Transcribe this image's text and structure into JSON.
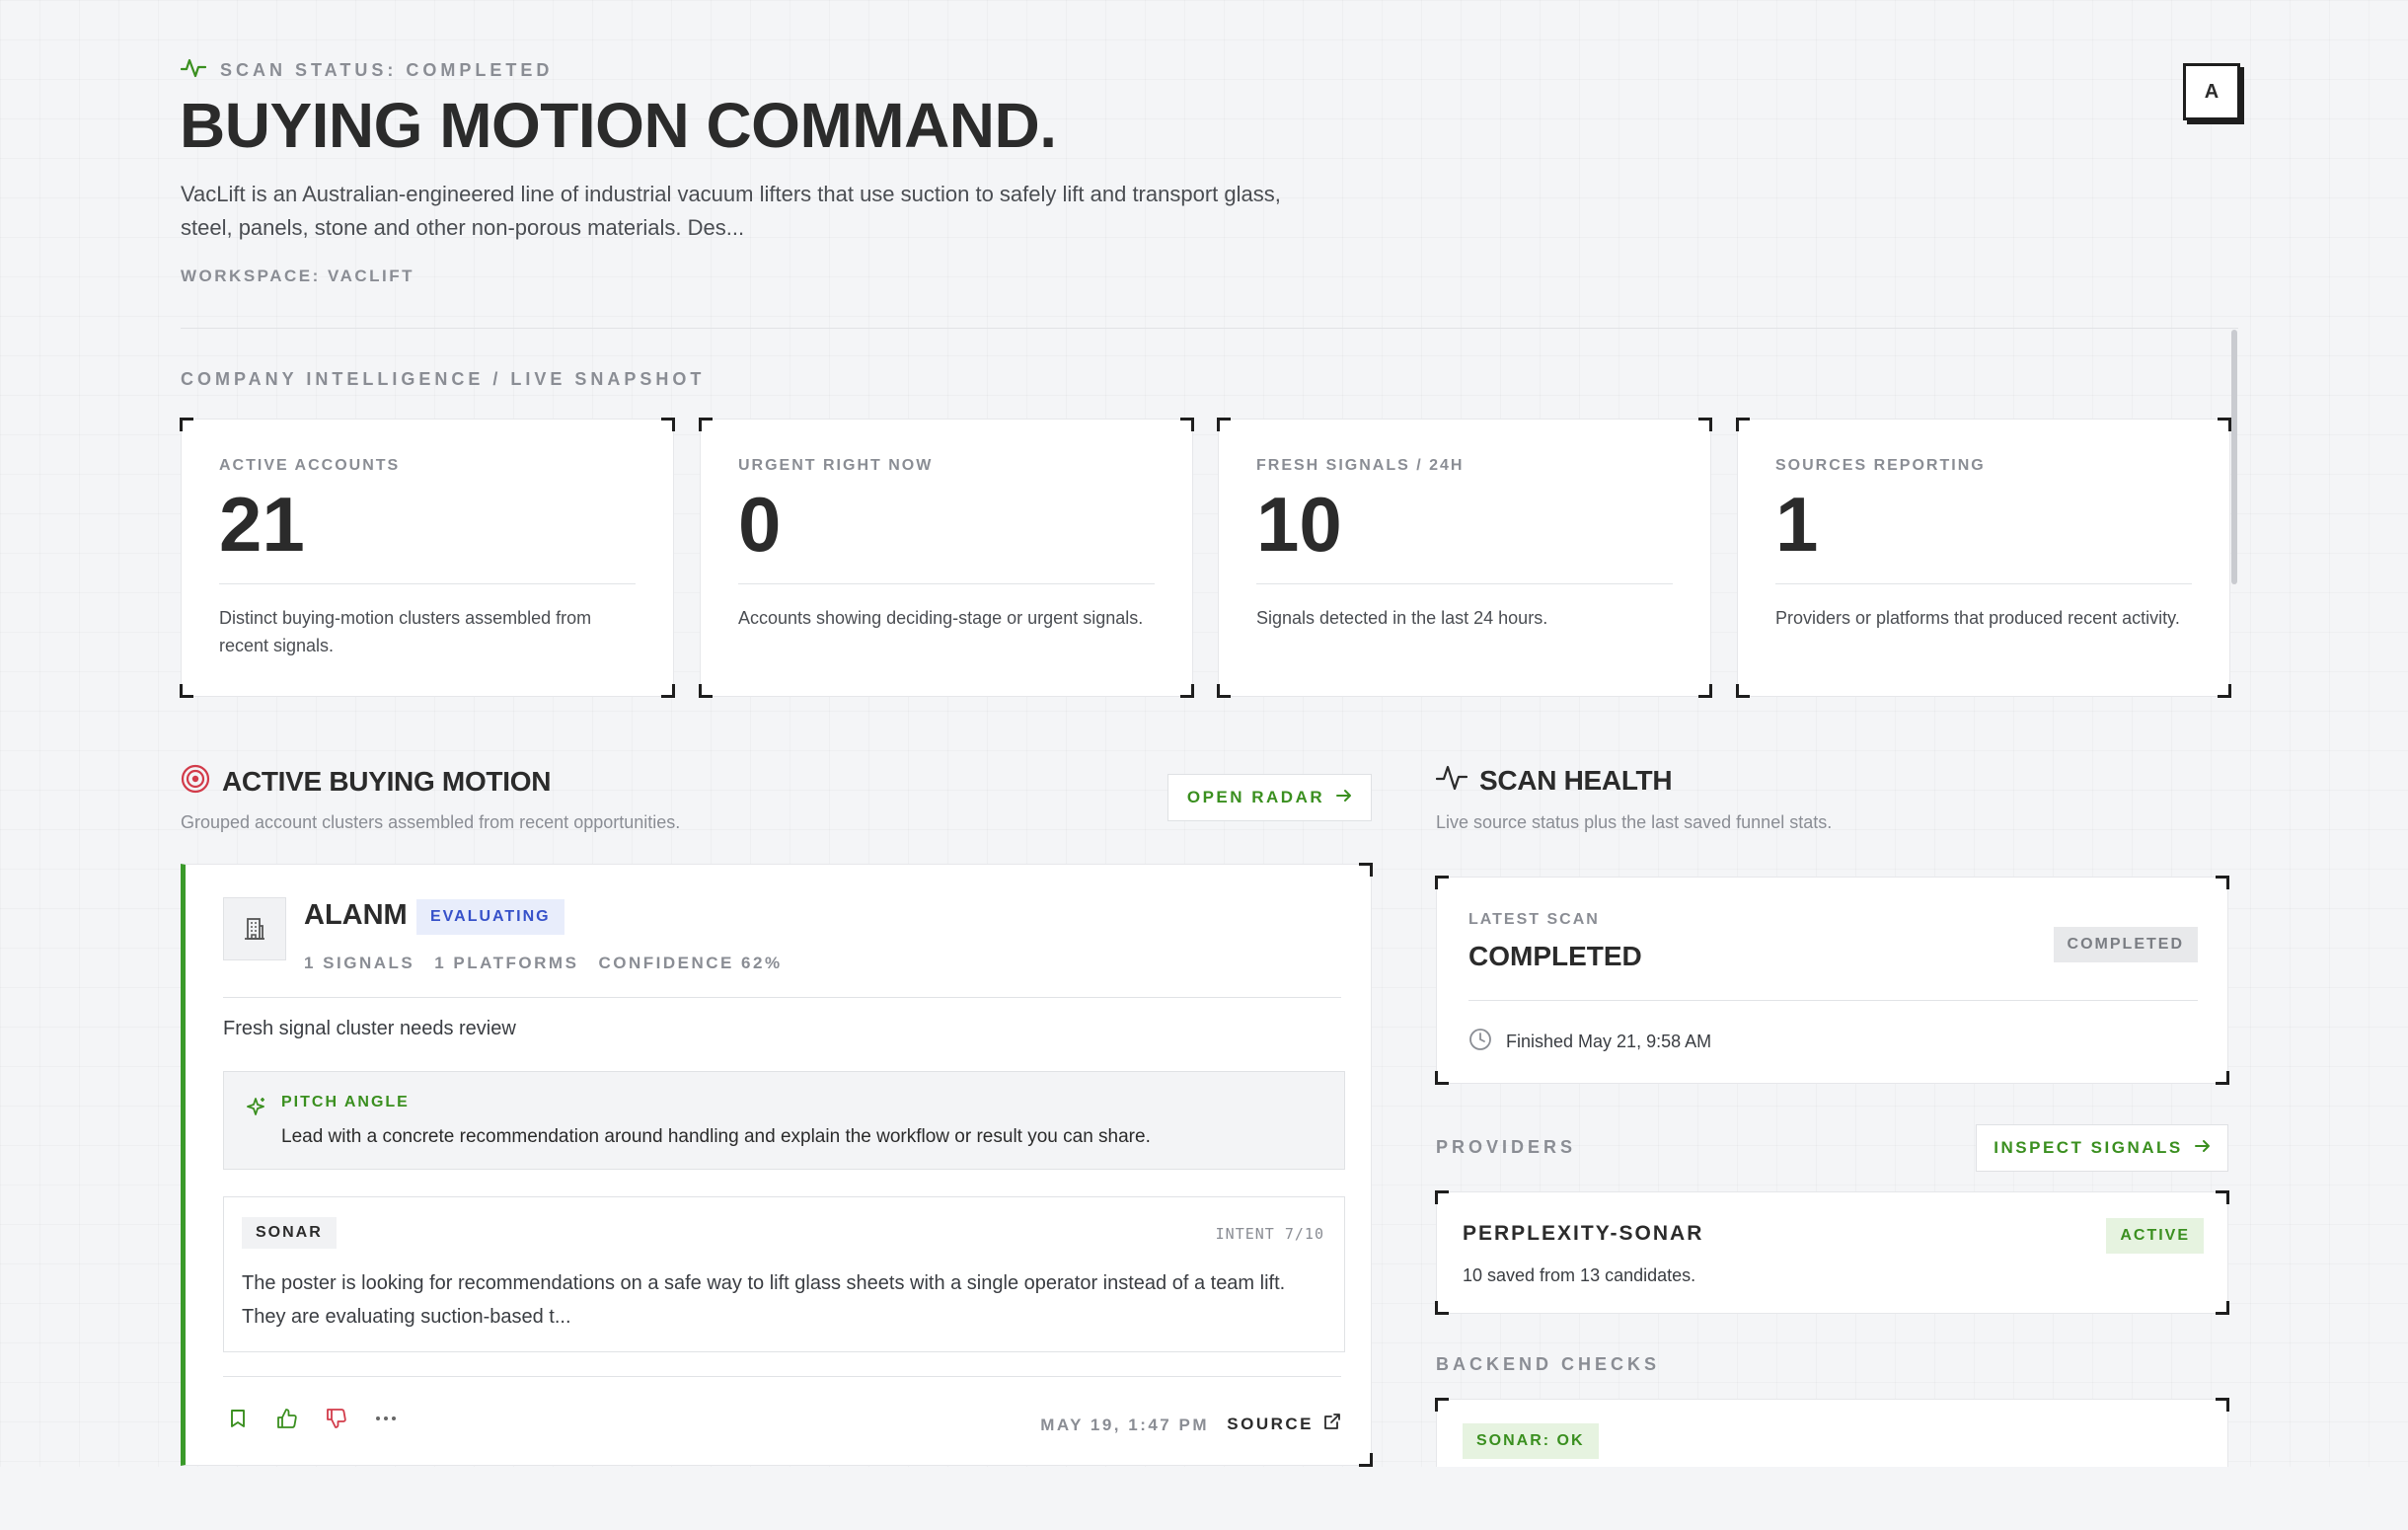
{
  "header": {
    "status": "SCAN STATUS: COMPLETED",
    "title": "BUYING MOTION COMMAND.",
    "description": "VacLift is an Australian-engineered line of industrial vacuum lifters that use suction to safely lift and transport glass, steel, panels, stone and other non-porous materials. Des...",
    "workspace": "WORKSPACE: VACLIFT",
    "avatar": "A"
  },
  "intel": {
    "section_label": "COMPANY INTELLIGENCE / LIVE SNAPSHOT",
    "metrics": [
      {
        "label": "ACTIVE ACCOUNTS",
        "value": "21",
        "desc": "Distinct buying-motion clusters assembled from recent signals."
      },
      {
        "label": "URGENT RIGHT NOW",
        "value": "0",
        "desc": "Accounts showing deciding-stage or urgent signals."
      },
      {
        "label": "FRESH SIGNALS / 24H",
        "value": "10",
        "desc": "Signals detected in the last 24 hours."
      },
      {
        "label": "SOURCES REPORTING",
        "value": "1",
        "desc": "Providers or platforms that produced recent activity."
      }
    ]
  },
  "buying": {
    "title": "ACTIVE BUYING MOTION",
    "subtitle": "Grouped account clusters assembled from recent opportunities.",
    "open_radar": "OPEN RADAR",
    "account": {
      "name": "ALANM",
      "stage": "EVALUATING",
      "signals": "1 SIGNALS",
      "platforms": "1 PLATFORMS",
      "confidence": "CONFIDENCE 62%",
      "summary": "Fresh signal cluster needs review",
      "pitch_label": "PITCH ANGLE",
      "pitch_text": "Lead with a concrete recommendation around handling and explain the workflow or result you can share.",
      "signal_source": "SONAR",
      "intent": "INTENT 7/10",
      "signal_text": "The poster is looking for recommendations on a safe way to lift glass sheets with a single operator instead of a team lift. They are evaluating suction-based t...",
      "date": "MAY 19, 1:47 PM",
      "source_label": "SOURCE"
    }
  },
  "health": {
    "title": "SCAN HEALTH",
    "subtitle": "Live source status plus the last saved funnel stats.",
    "latest_label": "LATEST SCAN",
    "latest_value": "COMPLETED",
    "latest_badge": "COMPLETED",
    "finished": "Finished May 21, 9:58 AM",
    "providers_label": "PROVIDERS",
    "inspect_signals": "INSPECT SIGNALS",
    "provider": {
      "name": "PERPLEXITY-SONAR",
      "status": "ACTIVE",
      "desc": "10 saved from 13 candidates."
    },
    "backend_label": "BACKEND CHECKS",
    "backend_badge": "SONAR: OK"
  },
  "colors": {
    "accent_green": "#3a8f1f",
    "accent_blue": "#3651c9",
    "target_red": "#d23b4a",
    "background": "#f4f5f7"
  }
}
